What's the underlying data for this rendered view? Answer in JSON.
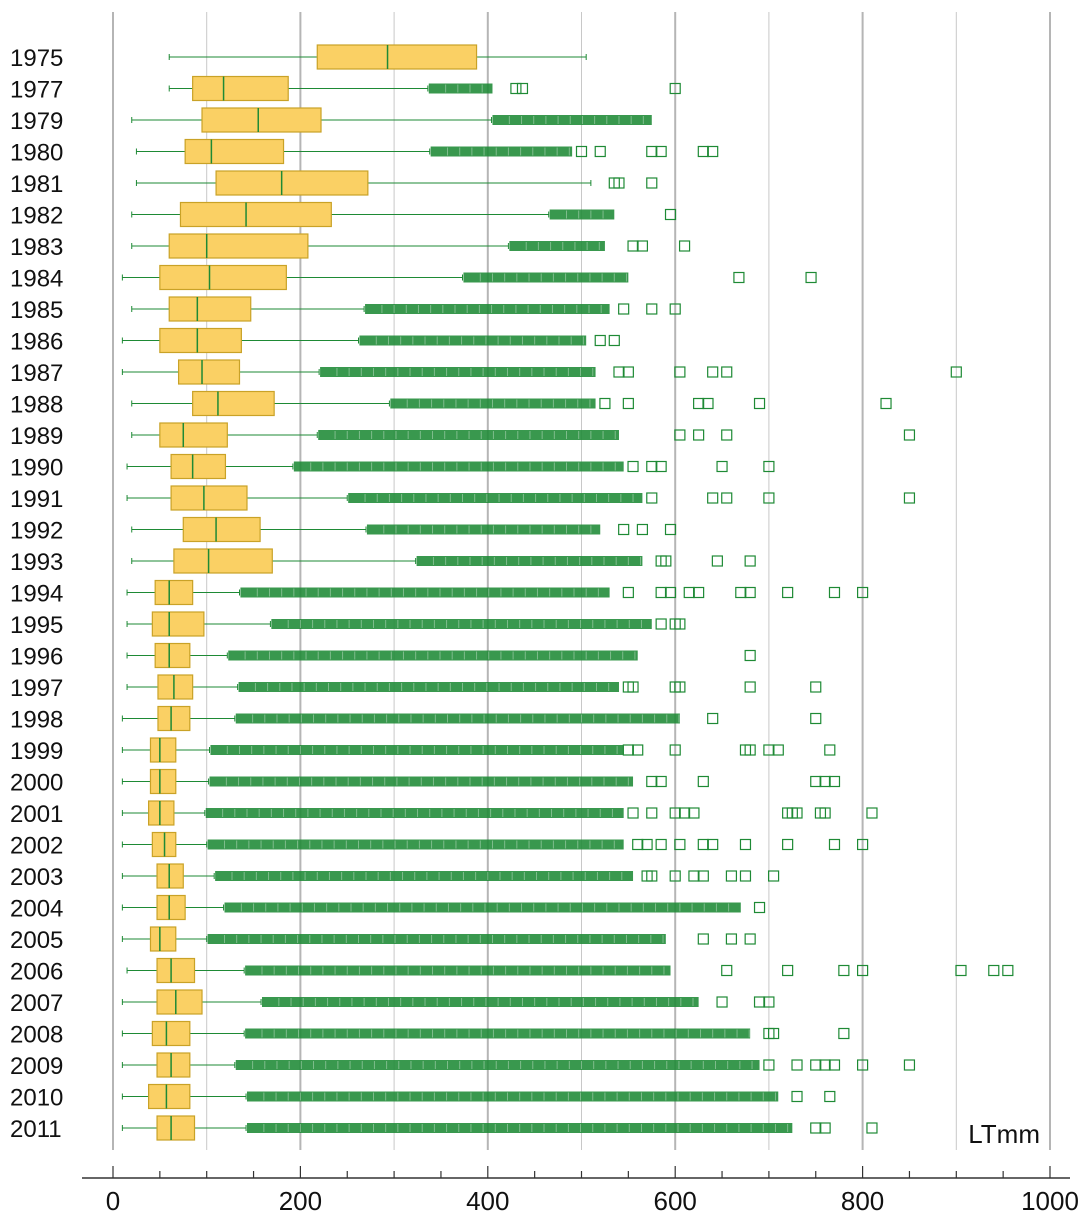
{
  "chart_data": {
    "type": "boxplot",
    "orientation": "horizontal",
    "xlabel": "LTmm",
    "xlim": [
      0,
      1000
    ],
    "xticks": [
      0,
      200,
      400,
      600,
      800,
      1000
    ],
    "xtick_labels": [
      "0",
      "200",
      "400",
      "600",
      "800",
      "1000"
    ],
    "grid": "vertical gridlines at 100-unit intervals",
    "colors": {
      "box_fill": "#FAD064",
      "box_edge": "#C9A227",
      "whisker": "#1E8A35",
      "outlier": "#1E8A35",
      "grid": "#BDBDBD",
      "axis": "#333333"
    },
    "categories": [
      "1975",
      "1977",
      "1979",
      "1980",
      "1981",
      "1982",
      "1983",
      "1984",
      "1985",
      "1986",
      "1987",
      "1988",
      "1989",
      "1990",
      "1991",
      "1992",
      "1993",
      "1994",
      "1995",
      "1996",
      "1997",
      "1998",
      "1999",
      "2000",
      "2001",
      "2002",
      "2003",
      "2004",
      "2005",
      "2006",
      "2007",
      "2008",
      "2009",
      "2010",
      "2011"
    ],
    "boxes": [
      {
        "year": "1975",
        "whisker_low": 60,
        "q1": 218,
        "median": 293,
        "q3": 388,
        "whisker_high": 505,
        "outlier_range": null,
        "isolated_outliers": []
      },
      {
        "year": "1977",
        "whisker_low": 60,
        "q1": 85,
        "median": 118,
        "q3": 187,
        "whisker_high": 336,
        "outlier_range": [
          337,
          405
        ],
        "isolated_outliers": [
          430,
          437,
          600
        ]
      },
      {
        "year": "1979",
        "whisker_low": 20,
        "q1": 95,
        "median": 155,
        "q3": 222,
        "whisker_high": 404,
        "outlier_range": [
          405,
          575
        ],
        "isolated_outliers": []
      },
      {
        "year": "1980",
        "whisker_low": 25,
        "q1": 77,
        "median": 105,
        "q3": 182,
        "whisker_high": 338,
        "outlier_range": [
          339,
          490
        ],
        "isolated_outliers": [
          500,
          520,
          575,
          585,
          630,
          640
        ]
      },
      {
        "year": "1981",
        "whisker_low": 25,
        "q1": 110,
        "median": 180,
        "q3": 272,
        "whisker_high": 510,
        "outlier_range": null,
        "isolated_outliers": [
          535,
          540,
          575
        ]
      },
      {
        "year": "1982",
        "whisker_low": 20,
        "q1": 72,
        "median": 142,
        "q3": 233,
        "whisker_high": 465,
        "outlier_range": [
          466,
          535
        ],
        "isolated_outliers": [
          595
        ]
      },
      {
        "year": "1983",
        "whisker_low": 20,
        "q1": 60,
        "median": 100,
        "q3": 208,
        "whisker_high": 422,
        "outlier_range": [
          423,
          525
        ],
        "isolated_outliers": [
          555,
          565,
          610
        ]
      },
      {
        "year": "1984",
        "whisker_low": 10,
        "q1": 50,
        "median": 103,
        "q3": 185,
        "whisker_high": 373,
        "outlier_range": [
          374,
          550
        ],
        "isolated_outliers": [
          668,
          745
        ]
      },
      {
        "year": "1985",
        "whisker_low": 20,
        "q1": 60,
        "median": 90,
        "q3": 147,
        "whisker_high": 268,
        "outlier_range": [
          269,
          530
        ],
        "isolated_outliers": [
          545,
          575,
          600
        ]
      },
      {
        "year": "1986",
        "whisker_low": 10,
        "q1": 50,
        "median": 90,
        "q3": 137,
        "whisker_high": 262,
        "outlier_range": [
          263,
          505
        ],
        "isolated_outliers": [
          520,
          535
        ]
      },
      {
        "year": "1987",
        "whisker_low": 10,
        "q1": 70,
        "median": 95,
        "q3": 135,
        "whisker_high": 220,
        "outlier_range": [
          221,
          515
        ],
        "isolated_outliers": [
          540,
          550,
          605,
          640,
          655,
          900
        ]
      },
      {
        "year": "1988",
        "whisker_low": 20,
        "q1": 85,
        "median": 112,
        "q3": 172,
        "whisker_high": 295,
        "outlier_range": [
          296,
          515
        ],
        "isolated_outliers": [
          525,
          550,
          625,
          635,
          690,
          825
        ]
      },
      {
        "year": "1989",
        "whisker_low": 20,
        "q1": 50,
        "median": 75,
        "q3": 122,
        "whisker_high": 218,
        "outlier_range": [
          219,
          540
        ],
        "isolated_outliers": [
          605,
          625,
          655,
          850
        ]
      },
      {
        "year": "1990",
        "whisker_low": 15,
        "q1": 62,
        "median": 85,
        "q3": 120,
        "whisker_high": 192,
        "outlier_range": [
          193,
          545
        ],
        "isolated_outliers": [
          555,
          575,
          585,
          650,
          700
        ]
      },
      {
        "year": "1991",
        "whisker_low": 15,
        "q1": 62,
        "median": 97,
        "q3": 143,
        "whisker_high": 250,
        "outlier_range": [
          251,
          565
        ],
        "isolated_outliers": [
          575,
          640,
          655,
          700,
          850
        ]
      },
      {
        "year": "1992",
        "whisker_low": 20,
        "q1": 75,
        "median": 110,
        "q3": 157,
        "whisker_high": 270,
        "outlier_range": [
          271,
          520
        ],
        "isolated_outliers": [
          545,
          565,
          595
        ]
      },
      {
        "year": "1993",
        "whisker_low": 20,
        "q1": 65,
        "median": 102,
        "q3": 170,
        "whisker_high": 323,
        "outlier_range": [
          324,
          565
        ],
        "isolated_outliers": [
          585,
          590,
          645,
          680
        ]
      },
      {
        "year": "1994",
        "whisker_low": 15,
        "q1": 45,
        "median": 60,
        "q3": 85,
        "whisker_high": 135,
        "outlier_range": [
          136,
          530
        ],
        "isolated_outliers": [
          550,
          585,
          595,
          615,
          625,
          670,
          680,
          720,
          770,
          800
        ]
      },
      {
        "year": "1995",
        "whisker_low": 15,
        "q1": 42,
        "median": 60,
        "q3": 97,
        "whisker_high": 168,
        "outlier_range": [
          169,
          575
        ],
        "isolated_outliers": [
          585,
          600,
          605
        ]
      },
      {
        "year": "1996",
        "whisker_low": 15,
        "q1": 45,
        "median": 60,
        "q3": 82,
        "whisker_high": 122,
        "outlier_range": [
          123,
          560
        ],
        "isolated_outliers": [
          680
        ]
      },
      {
        "year": "1997",
        "whisker_low": 15,
        "q1": 48,
        "median": 65,
        "q3": 85,
        "whisker_high": 133,
        "outlier_range": [
          134,
          540
        ],
        "isolated_outliers": [
          550,
          555,
          600,
          605,
          680,
          750
        ]
      },
      {
        "year": "1998",
        "whisker_low": 10,
        "q1": 48,
        "median": 62,
        "q3": 82,
        "whisker_high": 130,
        "outlier_range": [
          131,
          605
        ],
        "isolated_outliers": [
          640,
          750
        ]
      },
      {
        "year": "1999",
        "whisker_low": 10,
        "q1": 40,
        "median": 50,
        "q3": 67,
        "whisker_high": 103,
        "outlier_range": [
          104,
          545
        ],
        "isolated_outliers": [
          550,
          560,
          600,
          675,
          680,
          700,
          710,
          765
        ]
      },
      {
        "year": "2000",
        "whisker_low": 10,
        "q1": 40,
        "median": 50,
        "q3": 67,
        "whisker_high": 102,
        "outlier_range": [
          103,
          555
        ],
        "isolated_outliers": [
          575,
          585,
          630,
          750,
          760,
          770
        ]
      },
      {
        "year": "2001",
        "whisker_low": 10,
        "q1": 38,
        "median": 50,
        "q3": 65,
        "whisker_high": 98,
        "outlier_range": [
          99,
          545
        ],
        "isolated_outliers": [
          555,
          575,
          600,
          610,
          620,
          720,
          725,
          730,
          755,
          760,
          810
        ]
      },
      {
        "year": "2002",
        "whisker_low": 10,
        "q1": 42,
        "median": 55,
        "q3": 67,
        "whisker_high": 100,
        "outlier_range": [
          101,
          545
        ],
        "isolated_outliers": [
          560,
          570,
          585,
          605,
          630,
          640,
          675,
          720,
          770,
          800
        ]
      },
      {
        "year": "2003",
        "whisker_low": 10,
        "q1": 47,
        "median": 60,
        "q3": 75,
        "whisker_high": 108,
        "outlier_range": [
          109,
          555
        ],
        "isolated_outliers": [
          570,
          575,
          600,
          620,
          630,
          660,
          675,
          705
        ]
      },
      {
        "year": "2004",
        "whisker_low": 10,
        "q1": 47,
        "median": 60,
        "q3": 77,
        "whisker_high": 118,
        "outlier_range": [
          119,
          670
        ],
        "isolated_outliers": [
          690
        ]
      },
      {
        "year": "2005",
        "whisker_low": 10,
        "q1": 40,
        "median": 50,
        "q3": 67,
        "whisker_high": 100,
        "outlier_range": [
          101,
          590
        ],
        "isolated_outliers": [
          630,
          660,
          680
        ]
      },
      {
        "year": "2006",
        "whisker_low": 15,
        "q1": 47,
        "median": 62,
        "q3": 87,
        "whisker_high": 140,
        "outlier_range": [
          141,
          595
        ],
        "isolated_outliers": [
          655,
          720,
          780,
          800,
          905,
          940,
          955
        ]
      },
      {
        "year": "2007",
        "whisker_low": 10,
        "q1": 47,
        "median": 67,
        "q3": 95,
        "whisker_high": 158,
        "outlier_range": [
          159,
          625
        ],
        "isolated_outliers": [
          650,
          690,
          700
        ]
      },
      {
        "year": "2008",
        "whisker_low": 10,
        "q1": 42,
        "median": 57,
        "q3": 82,
        "whisker_high": 140,
        "outlier_range": [
          141,
          680
        ],
        "isolated_outliers": [
          700,
          705,
          780
        ]
      },
      {
        "year": "2009",
        "whisker_low": 10,
        "q1": 47,
        "median": 62,
        "q3": 82,
        "whisker_high": 130,
        "outlier_range": [
          131,
          690
        ],
        "isolated_outliers": [
          700,
          730,
          750,
          760,
          770,
          800,
          850
        ]
      },
      {
        "year": "2010",
        "whisker_low": 10,
        "q1": 38,
        "median": 57,
        "q3": 82,
        "whisker_high": 142,
        "outlier_range": [
          143,
          710
        ],
        "isolated_outliers": [
          730,
          765
        ]
      },
      {
        "year": "2011",
        "whisker_low": 10,
        "q1": 47,
        "median": 62,
        "q3": 87,
        "whisker_high": 142,
        "outlier_range": [
          143,
          725
        ],
        "isolated_outliers": [
          750,
          760,
          810
        ]
      }
    ]
  }
}
